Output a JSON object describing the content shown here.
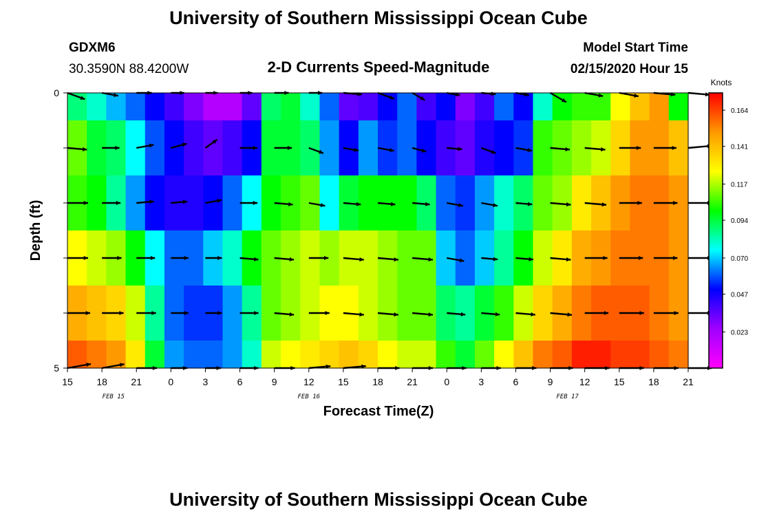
{
  "header": {
    "title": "University of Southern Mississippi Ocean Cube",
    "station_id": "GDXM6",
    "station_coords": "30.3590N 88.4200W",
    "plot_title": "2-D Currents Speed-Magnitude",
    "model_start_label": "Model Start Time",
    "model_start_value": "02/15/2020 Hour 15"
  },
  "footer": {
    "title": "University of Southern Mississippi Ocean Cube"
  },
  "colors": {
    "colormap": [
      "#ff00ff",
      "#a000ff",
      "#0000ff",
      "#00ffff",
      "#00ff00",
      "#ffff00",
      "#ff9900",
      "#ff0000"
    ],
    "arrow": "#000000",
    "axis": "#000000"
  },
  "chart_data": {
    "type": "heatmap",
    "title": "2-D Currents Speed-Magnitude",
    "xlabel": "Forecast Time(Z)",
    "ylabel": "Depth (ft)",
    "x_hours_range": [
      0,
      54
    ],
    "x_tick_labels": [
      "15",
      "18",
      "21",
      "0",
      "3",
      "6",
      "9",
      "12",
      "15",
      "18",
      "21",
      "0",
      "3",
      "6",
      "9",
      "12",
      "15",
      "18",
      "21"
    ],
    "date_labels": [
      {
        "label": "FEB 15",
        "hour": 4
      },
      {
        "label": "FEB 16",
        "hour": 21
      },
      {
        "label": "FEB 17",
        "hour": 43.5
      }
    ],
    "ylim": [
      0,
      5
    ],
    "y_tick_labels": [
      "0",
      "5"
    ],
    "depth_bands": [
      0,
      1,
      2,
      3,
      4,
      5
    ],
    "colorbar": {
      "label": "Knots",
      "range": [
        0.0,
        0.175
      ],
      "tick_labels": [
        "0.164",
        "0.141",
        "0.117",
        "0.094",
        "0.070",
        "0.047",
        "0.023"
      ],
      "tick_values": [
        0.164,
        0.141,
        0.117,
        0.094,
        0.07,
        0.047,
        0.023
      ]
    },
    "speed_knots_by_depth": [
      [
        0.088,
        0.08,
        0.068,
        0.06,
        0.05,
        0.04,
        0.03,
        0.02,
        0.02,
        0.035,
        0.09,
        0.095,
        0.08,
        0.06,
        0.035,
        0.038,
        0.05,
        0.06,
        0.04,
        0.05,
        0.03,
        0.04,
        0.06,
        0.05,
        0.08,
        0.1,
        0.105,
        0.105,
        0.125,
        0.14,
        0.15,
        0.1
      ],
      [
        0.11,
        0.095,
        0.09,
        0.075,
        0.058,
        0.05,
        0.04,
        0.035,
        0.04,
        0.05,
        0.095,
        0.095,
        0.09,
        0.065,
        0.05,
        0.065,
        0.055,
        0.06,
        0.05,
        0.04,
        0.035,
        0.045,
        0.05,
        0.055,
        0.105,
        0.11,
        0.115,
        0.12,
        0.135,
        0.15,
        0.15,
        0.14
      ],
      [
        0.105,
        0.1,
        0.085,
        0.065,
        0.05,
        0.045,
        0.045,
        0.05,
        0.06,
        0.075,
        0.1,
        0.105,
        0.11,
        0.075,
        0.095,
        0.1,
        0.1,
        0.1,
        0.09,
        0.06,
        0.055,
        0.065,
        0.08,
        0.09,
        0.11,
        0.115,
        0.13,
        0.14,
        0.15,
        0.155,
        0.155,
        0.15
      ],
      [
        0.125,
        0.12,
        0.115,
        0.1,
        0.075,
        0.06,
        0.06,
        0.07,
        0.08,
        0.1,
        0.11,
        0.115,
        0.12,
        0.115,
        0.12,
        0.12,
        0.115,
        0.11,
        0.11,
        0.07,
        0.06,
        0.07,
        0.085,
        0.1,
        0.12,
        0.13,
        0.145,
        0.15,
        0.155,
        0.155,
        0.155,
        0.15
      ],
      [
        0.145,
        0.14,
        0.135,
        0.12,
        0.085,
        0.06,
        0.055,
        0.055,
        0.065,
        0.085,
        0.11,
        0.115,
        0.12,
        0.125,
        0.125,
        0.12,
        0.115,
        0.11,
        0.11,
        0.09,
        0.085,
        0.095,
        0.105,
        0.12,
        0.135,
        0.145,
        0.155,
        0.16,
        0.16,
        0.16,
        0.155,
        0.15
      ],
      [
        0.16,
        0.155,
        0.15,
        0.13,
        0.095,
        0.065,
        0.06,
        0.06,
        0.065,
        0.08,
        0.12,
        0.125,
        0.13,
        0.135,
        0.14,
        0.135,
        0.125,
        0.12,
        0.12,
        0.105,
        0.095,
        0.11,
        0.125,
        0.14,
        0.155,
        0.16,
        0.17,
        0.17,
        0.165,
        0.165,
        0.16,
        0.155
      ]
    ],
    "vector_hours": [
      0,
      3,
      6,
      9,
      12,
      15,
      18,
      21,
      24,
      27,
      30,
      33,
      36,
      39,
      42,
      45,
      48,
      51,
      54
    ],
    "vector_depths": [
      0,
      1,
      2,
      3,
      4,
      5
    ],
    "vector_angles_deg": [
      [
        -20,
        -10,
        0,
        0,
        0,
        0,
        0,
        0,
        -5,
        -20,
        -30,
        -10,
        -5,
        -10,
        -30,
        -10,
        -10,
        -5,
        -5
      ],
      [
        -5,
        0,
        10,
        15,
        35,
        0,
        0,
        -20,
        -10,
        -10,
        -15,
        -5,
        -20,
        -10,
        -5,
        -5,
        0,
        0,
        5
      ],
      [
        0,
        0,
        5,
        5,
        10,
        0,
        -5,
        -10,
        -5,
        -5,
        -5,
        -10,
        -10,
        -5,
        -5,
        -5,
        0,
        0,
        0
      ],
      [
        0,
        0,
        0,
        0,
        0,
        -5,
        -5,
        0,
        -5,
        -5,
        -5,
        -10,
        -5,
        -5,
        -5,
        0,
        0,
        0,
        0
      ],
      [
        0,
        0,
        0,
        0,
        0,
        0,
        -5,
        0,
        -5,
        -5,
        -5,
        -5,
        -5,
        -5,
        -5,
        0,
        0,
        0,
        0
      ],
      [
        10,
        10,
        0,
        0,
        0,
        0,
        0,
        5,
        5,
        0,
        0,
        0,
        0,
        0,
        0,
        0,
        0,
        0,
        0
      ]
    ],
    "vector_magnitudes_knots": [
      [
        0.1,
        0.08,
        0.07,
        0.05,
        0.04,
        0.04,
        0.06,
        0.05,
        0.1,
        0.09,
        0.06,
        0.05,
        0.06,
        0.05,
        0.1,
        0.1,
        0.11,
        0.13,
        0.13
      ],
      [
        0.11,
        0.09,
        0.09,
        0.08,
        0.06,
        0.09,
        0.09,
        0.07,
        0.07,
        0.08,
        0.06,
        0.07,
        0.07,
        0.08,
        0.11,
        0.12,
        0.13,
        0.14,
        0.15
      ],
      [
        0.12,
        0.1,
        0.09,
        0.08,
        0.08,
        0.09,
        0.1,
        0.08,
        0.09,
        0.09,
        0.09,
        0.08,
        0.08,
        0.08,
        0.12,
        0.13,
        0.14,
        0.15,
        0.15
      ],
      [
        0.12,
        0.11,
        0.1,
        0.09,
        0.08,
        0.1,
        0.11,
        0.11,
        0.12,
        0.12,
        0.12,
        0.09,
        0.08,
        0.09,
        0.12,
        0.14,
        0.15,
        0.15,
        0.15
      ],
      [
        0.14,
        0.13,
        0.11,
        0.09,
        0.08,
        0.1,
        0.11,
        0.12,
        0.12,
        0.12,
        0.12,
        0.1,
        0.1,
        0.11,
        0.13,
        0.15,
        0.16,
        0.16,
        0.15
      ],
      [
        0.15,
        0.14,
        0.12,
        0.08,
        0.07,
        0.1,
        0.12,
        0.13,
        0.14,
        0.13,
        0.12,
        0.11,
        0.11,
        0.12,
        0.14,
        0.16,
        0.16,
        0.16,
        0.15
      ]
    ]
  }
}
